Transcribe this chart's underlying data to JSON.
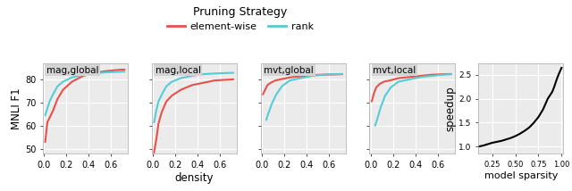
{
  "title": "Pruning Strategy",
  "legend_labels": [
    "element-wise",
    "rank"
  ],
  "legend_colors": [
    "#e8504a",
    "#55ccd4"
  ],
  "panels": [
    "mag,global",
    "mag,local",
    "mvt,global",
    "mvt,local"
  ],
  "ylabel_left": "MNLI F1",
  "xlabel_bottom": "density",
  "xlabel_right": "model sparsity",
  "ylabel_right": "speedup",
  "plot_bg_color": "#ebebeb",
  "mag_global_red_x": [
    0.01,
    0.03,
    0.05,
    0.08,
    0.12,
    0.17,
    0.25,
    0.35,
    0.45,
    0.55,
    0.65,
    0.72
  ],
  "mag_global_red_y": [
    53.0,
    61.5,
    63.5,
    66.5,
    71.5,
    75.5,
    79.0,
    81.5,
    82.8,
    83.5,
    84.0,
    84.2
  ],
  "mag_global_cyan_x": [
    0.01,
    0.03,
    0.05,
    0.08,
    0.12,
    0.17,
    0.25,
    0.35,
    0.45,
    0.55,
    0.65,
    0.72
  ],
  "mag_global_cyan_y": [
    64.5,
    67.5,
    70.5,
    73.5,
    77.0,
    79.0,
    80.8,
    82.0,
    82.5,
    83.0,
    83.2,
    83.3
  ],
  "mag_local_red_x": [
    0.01,
    0.03,
    0.05,
    0.08,
    0.12,
    0.17,
    0.25,
    0.35,
    0.45,
    0.55,
    0.65,
    0.72
  ],
  "mag_local_red_y": [
    48.5,
    54.0,
    61.0,
    66.0,
    70.5,
    73.0,
    75.5,
    77.5,
    78.5,
    79.5,
    79.8,
    80.0
  ],
  "mag_local_cyan_x": [
    0.01,
    0.03,
    0.05,
    0.08,
    0.12,
    0.17,
    0.25,
    0.35,
    0.45,
    0.55,
    0.65,
    0.72
  ],
  "mag_local_cyan_y": [
    61.5,
    66.5,
    70.5,
    73.5,
    77.0,
    79.0,
    80.5,
    81.5,
    82.2,
    82.5,
    82.7,
    82.8
  ],
  "mvt_global_red_x": [
    0.01,
    0.03,
    0.05,
    0.08,
    0.12,
    0.17,
    0.25,
    0.35,
    0.45,
    0.55,
    0.65,
    0.72
  ],
  "mvt_global_red_y": [
    73.5,
    75.5,
    77.5,
    78.5,
    79.5,
    80.0,
    80.8,
    81.3,
    81.8,
    82.0,
    82.1,
    82.2
  ],
  "mvt_global_cyan_x": [
    0.04,
    0.06,
    0.09,
    0.13,
    0.18,
    0.25,
    0.35,
    0.45,
    0.55,
    0.65,
    0.72
  ],
  "mvt_global_cyan_y": [
    62.5,
    65.5,
    69.5,
    73.5,
    77.0,
    79.5,
    80.5,
    81.5,
    82.0,
    82.2,
    82.3
  ],
  "mvt_local_red_x": [
    0.01,
    0.03,
    0.05,
    0.08,
    0.12,
    0.17,
    0.25,
    0.35,
    0.45,
    0.55,
    0.65,
    0.72
  ],
  "mvt_local_red_y": [
    70.5,
    74.0,
    76.5,
    78.0,
    79.0,
    79.5,
    80.5,
    81.0,
    81.5,
    82.0,
    82.2,
    82.3
  ],
  "mvt_local_cyan_x": [
    0.04,
    0.06,
    0.09,
    0.13,
    0.18,
    0.25,
    0.35,
    0.45,
    0.55,
    0.65,
    0.72
  ],
  "mvt_local_cyan_y": [
    60.0,
    63.0,
    68.0,
    73.0,
    76.5,
    79.0,
    80.0,
    81.0,
    81.5,
    82.0,
    82.2
  ],
  "speedup_x": [
    0.1,
    0.15,
    0.2,
    0.25,
    0.3,
    0.35,
    0.4,
    0.45,
    0.5,
    0.55,
    0.6,
    0.65,
    0.7,
    0.75,
    0.8,
    0.85,
    0.9,
    0.92,
    0.95,
    0.97,
    1.0
  ],
  "speedup_y": [
    1.0,
    1.02,
    1.05,
    1.08,
    1.1,
    1.12,
    1.15,
    1.18,
    1.22,
    1.27,
    1.33,
    1.4,
    1.5,
    1.62,
    1.78,
    2.0,
    2.15,
    2.25,
    2.42,
    2.52,
    2.65
  ],
  "ylim_mnli": [
    48,
    87
  ],
  "xlim_density": [
    -0.01,
    0.75
  ],
  "yticks_mnli": [
    50,
    60,
    70,
    80
  ],
  "xticks_density": [
    0,
    0.2,
    0.4,
    0.6
  ],
  "xlim_sparsity": [
    0.1,
    1.02
  ],
  "ylim_speedup": [
    0.85,
    2.75
  ],
  "xticks_sparsity": [
    0.25,
    0.5,
    0.75,
    1.0
  ],
  "yticks_speedup": [
    1.0,
    1.5,
    2.0,
    2.5
  ],
  "line_width": 1.5,
  "grid_color": "white",
  "grid_lw": 0.8
}
